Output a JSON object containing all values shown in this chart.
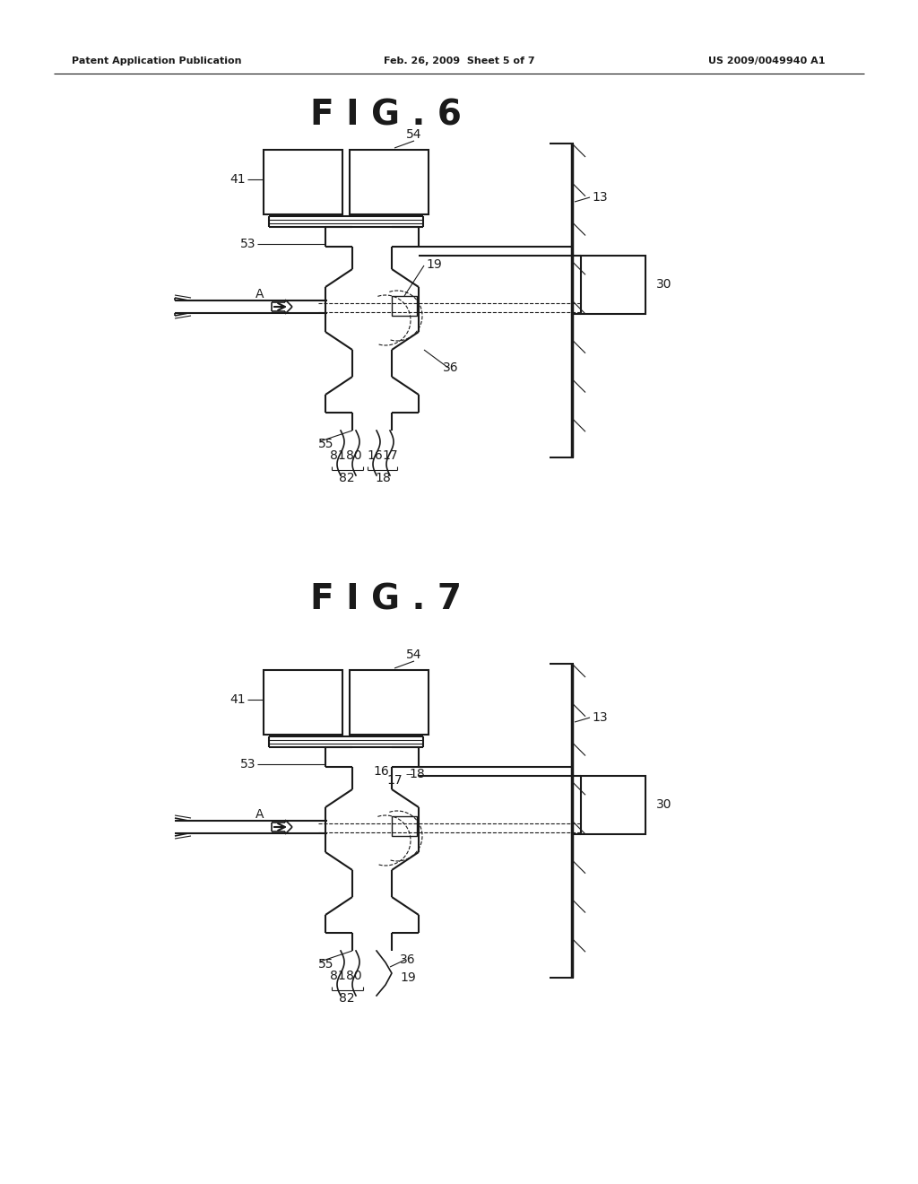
{
  "bg_color": "#ffffff",
  "line_color": "#1a1a1a",
  "header_left": "Patent Application Publication",
  "header_mid": "Feb. 26, 2009  Sheet 5 of 7",
  "header_right": "US 2009/0049940 A1",
  "fig6_title": "F I G . 6",
  "fig7_title": "F I G . 7"
}
